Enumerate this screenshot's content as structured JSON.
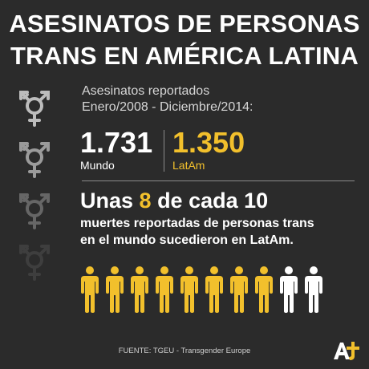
{
  "title": {
    "line1": "ASESINATOS DE PERSONAS",
    "line2": "TRANS EN AMÉRICA LATINA"
  },
  "subtitle": {
    "line1": "Asesinatos reportados",
    "line2": "Enero/2008 - Diciembre/2014:"
  },
  "stats": {
    "world": {
      "value": "1.731",
      "label": "Mundo"
    },
    "latam": {
      "value": "1.350",
      "label": "LatAm"
    }
  },
  "headline": {
    "prefix": "Unas ",
    "number": "8",
    "middle": " de cada ",
    "total": "10"
  },
  "description": {
    "line1": "muertes reportadas de personas trans",
    "line2": "en el mundo sucedieron en LatAm."
  },
  "pictogram": {
    "highlighted": 8,
    "total": 10
  },
  "source": "FUENTE: TGEU - Transgender Europe",
  "icons": [
    "transgender-symbol-icon",
    "person-icon",
    "aj-plus-logo"
  ],
  "colors": {
    "background": "#2b2b2b",
    "accent": "#f2c02c",
    "text": "#ffffff",
    "muted": "#d6d6d6"
  }
}
